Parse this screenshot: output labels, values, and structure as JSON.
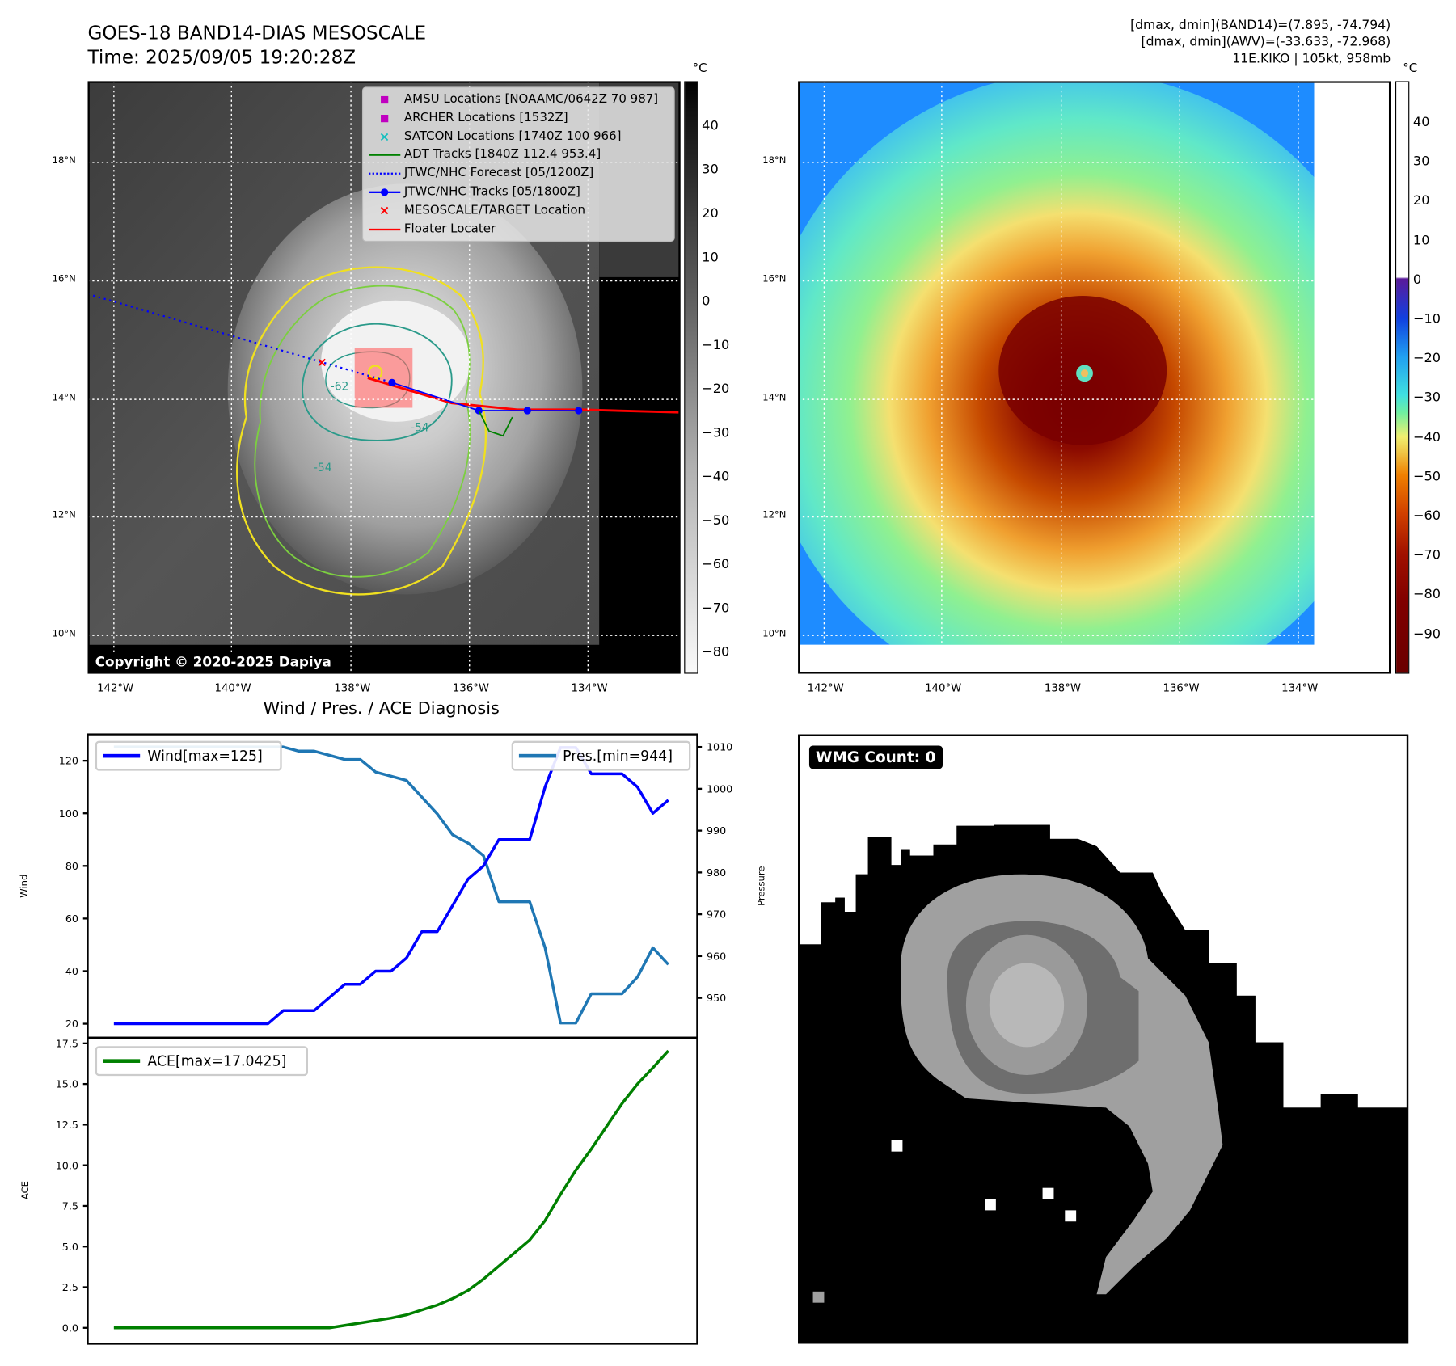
{
  "header": {
    "title": "GOES-18 BAND14-DIAS MESOSCALE",
    "time": "Time: 2025/09/05 19:20:28Z",
    "info": [
      "[dmax, dmin](BAND14)=(7.895, -74.794)",
      "[dmax, dmin](AWV)=(-33.633, -72.968)",
      "11E.KIKO | 105kt, 958mb"
    ]
  },
  "maps": {
    "lat_labels": [
      "18°N",
      "16°N",
      "14°N",
      "12°N",
      "10°N"
    ],
    "lon_labels": [
      "142°W",
      "140°W",
      "138°W",
      "136°W",
      "134°W"
    ],
    "unit": "°C",
    "left_colorbar_ticks": [
      "40",
      "30",
      "20",
      "10",
      "0",
      "−10",
      "−20",
      "−30",
      "−40",
      "−50",
      "−60",
      "−70",
      "−80"
    ],
    "right_colorbar_ticks": [
      "40",
      "30",
      "20",
      "10",
      "0",
      "−10",
      "−20",
      "−30",
      "−40",
      "−50",
      "−60",
      "−70",
      "−80",
      "−90"
    ],
    "copyright": "Copyright © 2020-2025 Dapiya",
    "contour_labels": [
      "-62",
      "-54",
      "-54"
    ],
    "legend": [
      {
        "label": "AMSU Locations [NOAAMC/0642Z 70 987]",
        "icon": "square-marker",
        "color": "#c000c0"
      },
      {
        "label": "ARCHER Locations [1532Z]",
        "icon": "square-marker",
        "color": "#c000c0"
      },
      {
        "label": "SATCON Locations [1740Z 100 966]",
        "icon": "x-marker",
        "color": "#17bfbf"
      },
      {
        "label": "ADT Tracks [1840Z 112.4 953.4]",
        "icon": "solid-line",
        "color": "#008000"
      },
      {
        "label": "JTWC/NHC Forecast [05/1200Z]",
        "icon": "dotted-line",
        "color": "#0000ff"
      },
      {
        "label": "JTWC/NHC Tracks [05/1800Z]",
        "icon": "line-dot",
        "color": "#0000ff"
      },
      {
        "label": "MESOSCALE/TARGET Location",
        "icon": "x-marker",
        "color": "#ff0000"
      },
      {
        "label": "Floater Locater",
        "icon": "solid-line",
        "color": "#ff0000"
      }
    ]
  },
  "wmg": {
    "badge": "WMG Count: 0"
  },
  "chart_data": [
    {
      "type": "line",
      "title": "Wind / Pres. / ACE Diagnosis",
      "ylabel": "Wind",
      "y2label": "Pressure",
      "ylim": [
        14.7,
        130
      ],
      "y2lim": [
        940.5,
        1013
      ],
      "yticks": [
        20,
        40,
        60,
        80,
        100,
        120
      ],
      "y2ticks": [
        950,
        960,
        970,
        980,
        990,
        1000,
        1010
      ],
      "series": [
        {
          "name": "Wind[max=125]",
          "axis": "left",
          "color": "#0000ff",
          "values": [
            20,
            20,
            20,
            20,
            20,
            20,
            20,
            20,
            20,
            20,
            20,
            25,
            25,
            25,
            30,
            35,
            35,
            40,
            40,
            45,
            55,
            55,
            65,
            75,
            80,
            90,
            90,
            90,
            110,
            125,
            125,
            115,
            115,
            115,
            110,
            100,
            105
          ]
        },
        {
          "name": "Pres.[min=944]",
          "axis": "right",
          "color": "#1f77b4",
          "values": [
            1010,
            1010,
            1010,
            1010,
            1010,
            1010,
            1010,
            1010,
            1010,
            1010,
            1010,
            1010,
            1009,
            1009,
            1008,
            1007,
            1007,
            1004,
            1003,
            1002,
            998,
            994,
            989,
            987,
            984,
            973,
            973,
            973,
            962,
            944,
            944,
            951,
            951,
            951,
            955,
            962,
            958
          ]
        }
      ]
    },
    {
      "type": "line",
      "ylabel": "ACE",
      "ylim": [
        -0.98,
        17.85
      ],
      "yticks": [
        "0.0",
        "2.5",
        "5.0",
        "7.5",
        "10.0",
        "12.5",
        "15.0",
        "17.5"
      ],
      "series": [
        {
          "name": "ACE[max=17.0425]",
          "color": "#008000",
          "values": [
            0,
            0,
            0,
            0,
            0,
            0,
            0,
            0,
            0,
            0,
            0,
            0,
            0,
            0,
            0,
            0.15,
            0.3,
            0.45,
            0.6,
            0.8,
            1.1,
            1.4,
            1.8,
            2.3,
            3.0,
            3.8,
            4.6,
            5.4,
            6.6,
            8.2,
            9.7,
            11.0,
            12.4,
            13.8,
            15.0,
            16.0,
            17.0425
          ]
        }
      ]
    }
  ]
}
